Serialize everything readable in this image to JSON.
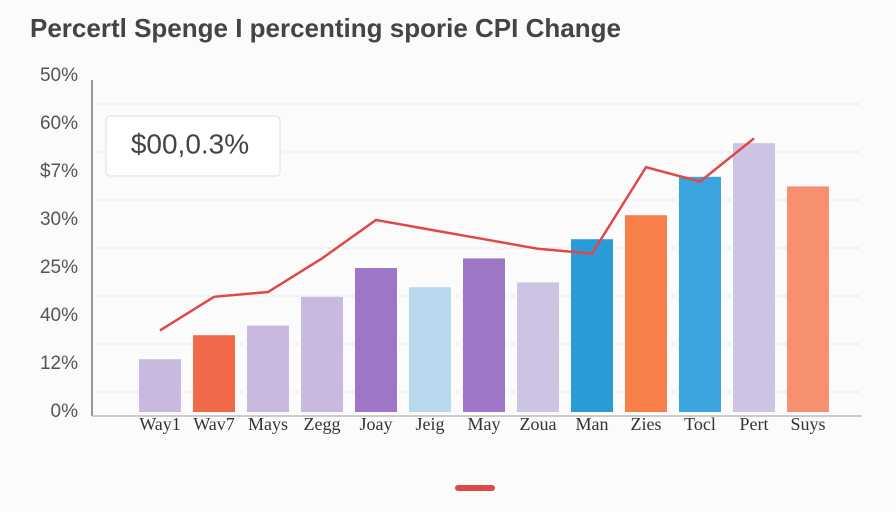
{
  "chart_data": {
    "type": "bar",
    "title": "Percertl Spenge I percenting sporie CPI Change",
    "annotation": "$00,0.3%",
    "y_labels": [
      "0%",
      "12%",
      "40%",
      "25%",
      "30%",
      "$7%",
      "60%",
      "50%"
    ],
    "ylim": [
      0,
      7
    ],
    "grid": true,
    "categories": [
      "Way1",
      "Wav7",
      "Mays",
      "Zegg",
      "Joay",
      "Jeig",
      "May",
      "Zoua",
      "Man",
      "Zies",
      "Tocl",
      "Pert",
      "Suys"
    ],
    "series": [
      {
        "type": "bar",
        "colors": [
          "#c9b8e0",
          "#f06a4a",
          "#c9b8e0",
          "#c9b8e0",
          "#9d77c6",
          "#b8d8ee",
          "#9d77c6",
          "#cdc3e3",
          "#2b9bd8",
          "#f7804a",
          "#3aa5dc",
          "#cdc3e3",
          "#f79070"
        ],
        "values": [
          1.1,
          1.6,
          1.8,
          2.4,
          3.0,
          2.6,
          3.2,
          2.7,
          3.6,
          4.1,
          4.9,
          5.6,
          4.7
        ]
      },
      {
        "type": "line",
        "color": "#e04848",
        "values": [
          1.7,
          2.4,
          2.5,
          3.2,
          4.0,
          3.8,
          3.6,
          3.4,
          3.3,
          5.1,
          4.8,
          5.7,
          null
        ]
      }
    ]
  }
}
